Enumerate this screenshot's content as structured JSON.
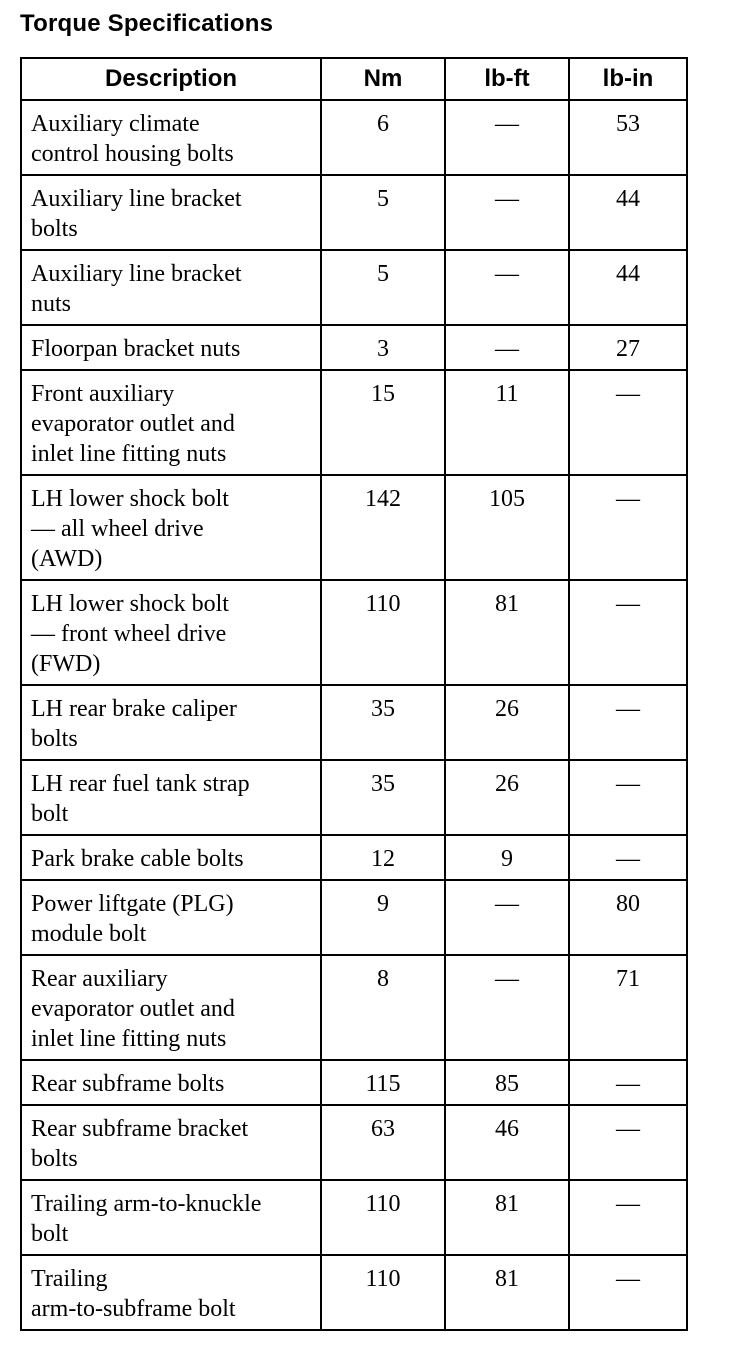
{
  "title": "Torque Specifications",
  "columns": [
    "Description",
    "Nm",
    "lb-ft",
    "lb-in"
  ],
  "rows": [
    {
      "description": "Auxiliary climate\ncontrol housing bolts",
      "nm": "6",
      "lbft": "—",
      "lbin": "53"
    },
    {
      "description": "Auxiliary line bracket\nbolts",
      "nm": "5",
      "lbft": "—",
      "lbin": "44"
    },
    {
      "description": "Auxiliary line bracket\nnuts",
      "nm": "5",
      "lbft": "—",
      "lbin": "44"
    },
    {
      "description": "Floorpan bracket nuts",
      "nm": "3",
      "lbft": "—",
      "lbin": "27"
    },
    {
      "description": "Front auxiliary\nevaporator outlet and\ninlet line fitting nuts",
      "nm": "15",
      "lbft": "11",
      "lbin": "—"
    },
    {
      "description": "LH lower shock bolt\n— all wheel drive\n(AWD)",
      "nm": "142",
      "lbft": "105",
      "lbin": "—"
    },
    {
      "description": "LH lower shock bolt\n— front wheel drive\n(FWD)",
      "nm": "110",
      "lbft": "81",
      "lbin": "—"
    },
    {
      "description": "LH rear brake caliper\nbolts",
      "nm": "35",
      "lbft": "26",
      "lbin": "—"
    },
    {
      "description": "LH rear fuel tank strap\nbolt",
      "nm": "35",
      "lbft": "26",
      "lbin": "—"
    },
    {
      "description": "Park brake cable bolts",
      "nm": "12",
      "lbft": "9",
      "lbin": "—"
    },
    {
      "description": "Power liftgate (PLG)\nmodule bolt",
      "nm": "9",
      "lbft": "—",
      "lbin": "80"
    },
    {
      "description": "Rear auxiliary\nevaporator outlet and\ninlet line fitting nuts",
      "nm": "8",
      "lbft": "—",
      "lbin": "71"
    },
    {
      "description": "Rear subframe bolts",
      "nm": "115",
      "lbft": "85",
      "lbin": "—"
    },
    {
      "description": "Rear subframe bracket\nbolts",
      "nm": "63",
      "lbft": "46",
      "lbin": "—"
    },
    {
      "description": "Trailing arm-to-knuckle\nbolt",
      "nm": "110",
      "lbft": "81",
      "lbin": "—"
    },
    {
      "description": "Trailing\narm-to-subframe bolt",
      "nm": "110",
      "lbft": "81",
      "lbin": "—"
    }
  ]
}
